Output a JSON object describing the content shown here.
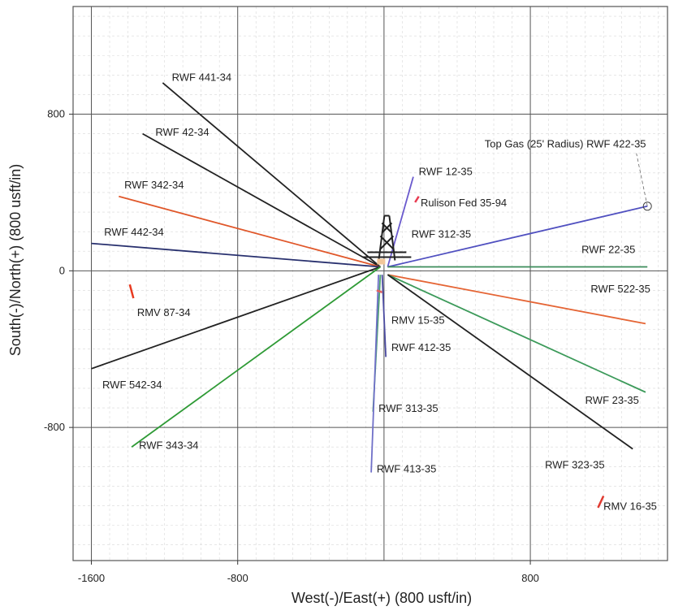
{
  "chart_data": {
    "type": "line",
    "title": "",
    "xlabel": "West(-)/East(+) (800 usft/in)",
    "ylabel": "South(-)/North(+) (800 usft/in)",
    "xlim": [
      -1700,
      1550
    ],
    "ylim": [
      -1480,
      1350
    ],
    "x_ticks": [
      -1600,
      -800,
      800
    ],
    "y_ticks": [
      800,
      0,
      -800
    ],
    "grid": true,
    "legend": "none",
    "surface": [
      -20,
      20
    ],
    "series": [
      {
        "name": "RWF 441-34",
        "color": "#222222",
        "x": [
          -20,
          -1210
        ],
        "y": [
          20,
          960
        ],
        "label": [
          -1160,
          970
        ]
      },
      {
        "name": "RWF 42-34",
        "color": "#222222",
        "x": [
          -20,
          -1320
        ],
        "y": [
          20,
          700
        ],
        "label": [
          -1250,
          690
        ]
      },
      {
        "name": "RWF 342-34",
        "color": "#e0572a",
        "x": [
          -20,
          -1450
        ],
        "y": [
          20,
          380
        ],
        "label": [
          -1420,
          420
        ]
      },
      {
        "name": "RWF 442-34",
        "color": "#28306e",
        "x": [
          -20,
          -1600
        ],
        "y": [
          20,
          140
        ],
        "label": [
          -1530,
          180
        ]
      },
      {
        "name": "RWF 542-34",
        "color": "#222222",
        "x": [
          -20,
          -1600
        ],
        "y": [
          20,
          -500
        ],
        "label": [
          -1540,
          -600
        ]
      },
      {
        "name": "RWF 343-34",
        "color": "#2e9a35",
        "x": [
          -20,
          -1380
        ],
        "y": [
          20,
          -900
        ],
        "label": [
          -1340,
          -910
        ]
      },
      {
        "name": "RWF 12-35",
        "color": "#6a5acd",
        "x": [
          20,
          160
        ],
        "y": [
          20,
          480
        ],
        "label": [
          190,
          490
        ]
      },
      {
        "name": "Top Gas (25' Radius) RWF 422-35",
        "color": "#5050c0",
        "x": [
          20,
          1440
        ],
        "y": [
          20,
          330
        ],
        "label": [
          550,
          630
        ]
      },
      {
        "name": "RWF 22-35",
        "color": "#3b8c5a",
        "x": [
          20,
          1440
        ],
        "y": [
          20,
          20
        ],
        "label": [
          1080,
          90
        ]
      },
      {
        "name": "RWF 522-35",
        "color": "#e56535",
        "x": [
          20,
          1430
        ],
        "y": [
          -20,
          -270
        ],
        "label": [
          1130,
          -110
        ]
      },
      {
        "name": "RWF 23-35",
        "color": "#3c9a5a",
        "x": [
          20,
          1430
        ],
        "y": [
          -20,
          -620
        ],
        "label": [
          1100,
          -680
        ]
      },
      {
        "name": "RWF 323-35",
        "color": "#222222",
        "x": [
          20,
          1360
        ],
        "y": [
          -20,
          -910
        ],
        "label": [
          880,
          -1010
        ]
      },
      {
        "name": "RWF 412-35",
        "color": "#4a4aa0",
        "x": [
          -10,
          10
        ],
        "y": [
          -20,
          -440
        ],
        "label": [
          40,
          -410
        ]
      },
      {
        "name": "RWF 313-35",
        "color": "#4aa070",
        "x": [
          -20,
          -60
        ],
        "y": [
          -20,
          -720
        ],
        "label": [
          -30,
          -720
        ]
      },
      {
        "name": "RWF 413-35",
        "color": "#7070c8",
        "x": [
          -30,
          -70
        ],
        "y": [
          -20,
          -1030
        ],
        "label": [
          -40,
          -1030
        ]
      }
    ],
    "offset_wells": [
      {
        "name": "Rulison Fed 35-94",
        "color": "#e83a50",
        "x": [
          170,
          190
        ],
        "y": [
          350,
          380
        ],
        "label": [
          200,
          330
        ]
      },
      {
        "name": "RMV 87-34",
        "color": "#e83a20",
        "x": [
          -1370,
          -1390
        ],
        "y": [
          -140,
          -70
        ],
        "label": [
          -1350,
          -230
        ]
      },
      {
        "name": "RMV 15-35",
        "color": "#e06060",
        "x": [
          -40,
          -10
        ],
        "y": [
          -100,
          -110
        ],
        "label": [
          40,
          -270
        ]
      },
      {
        "name": "RMV 16-35",
        "color": "#e03a30",
        "x": [
          1170,
          1200
        ],
        "y": [
          -1210,
          -1150
        ],
        "label": [
          1200,
          -1220
        ]
      }
    ],
    "annotations": [
      "RWF 312-35"
    ],
    "annotation_position": [
      150,
      170
    ]
  }
}
